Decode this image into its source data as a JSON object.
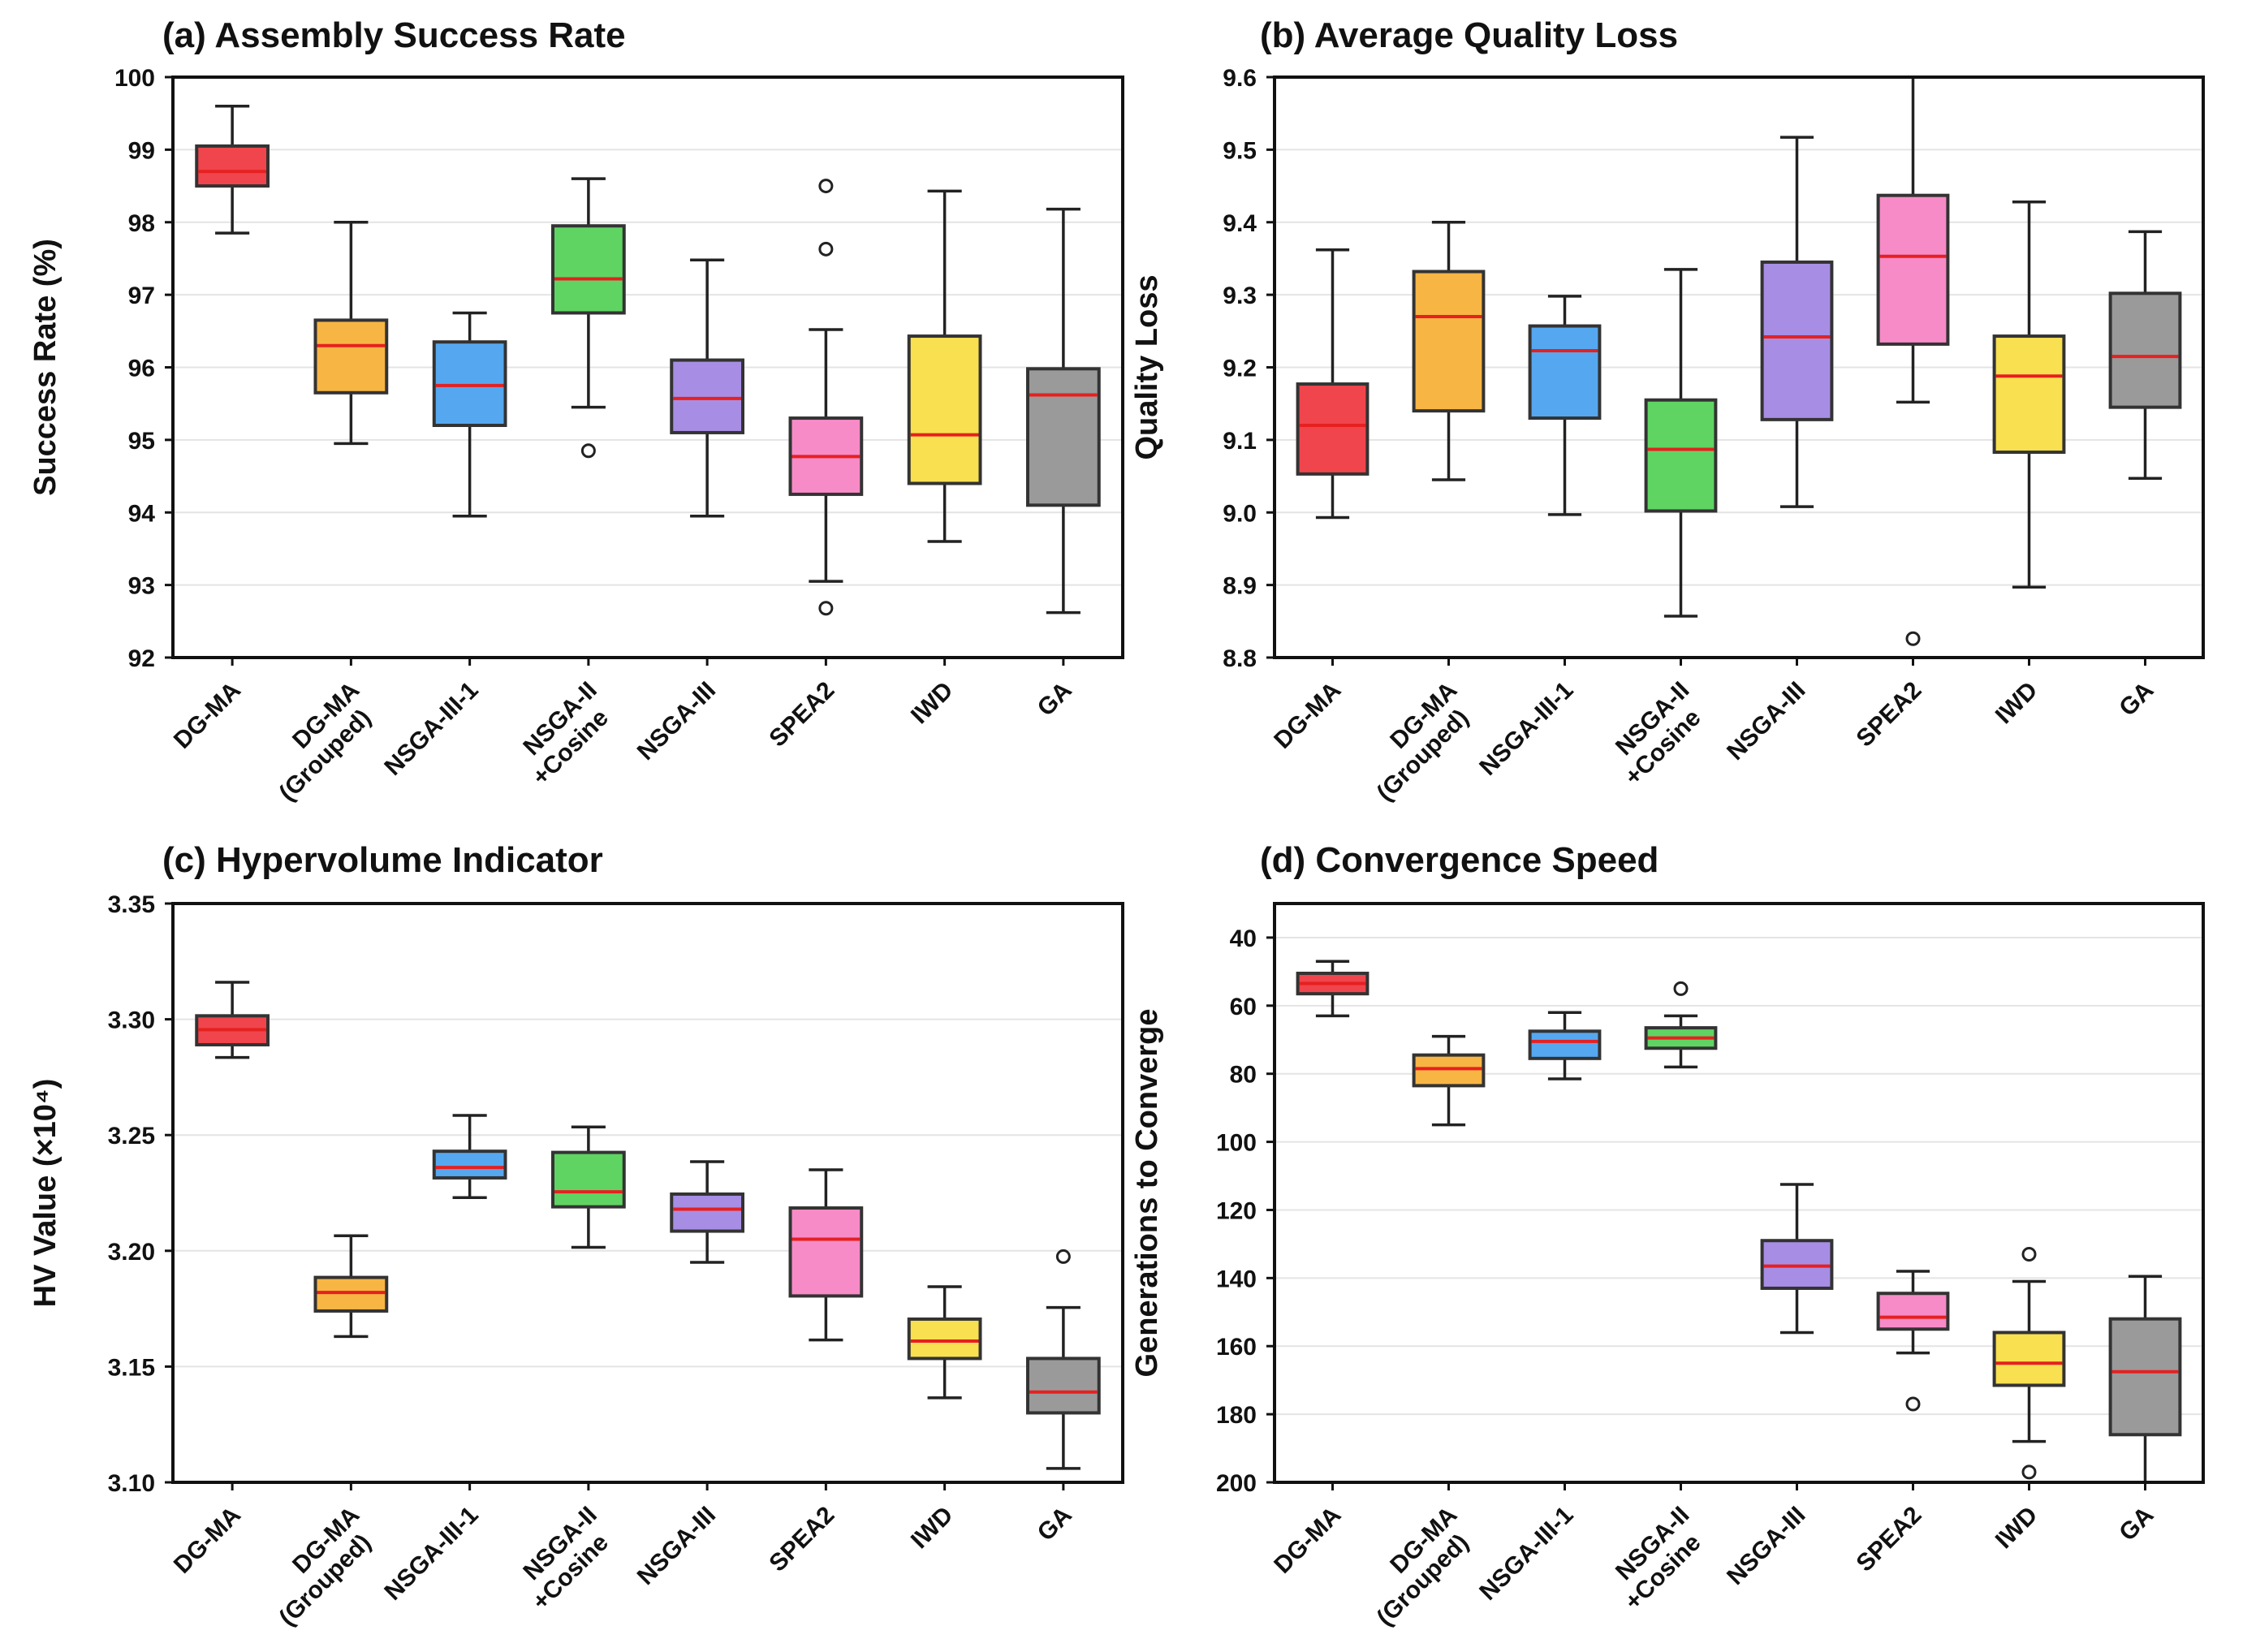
{
  "figure": {
    "categories": [
      "DG-MA",
      "DG-MA\n(Grouped)",
      "NSGA-III-1",
      "NSGA-II\n+Cosine",
      "NSGA-III",
      "SPEA2",
      "IWD",
      "GA"
    ],
    "colors": [
      "#f0454c",
      "#f7b544",
      "#55a8f0",
      "#5fd463",
      "#a78ee4",
      "#f78bc7",
      "#f8e050",
      "#9a9a9a"
    ],
    "median_colors": [
      "#e62020",
      "#e62020",
      "#e62020",
      "#e62020",
      "#e62020",
      "#e62020",
      "#e62020",
      "#e62020"
    ],
    "edge_colors": [
      "#333333",
      "#333333",
      "#333333",
      "#333333",
      "#333333",
      "#333333",
      "#333333",
      "#333333"
    ]
  },
  "chart_data": [
    {
      "type": "box",
      "title": "(a) Assembly Success Rate",
      "ylabel": "Success Rate (%)",
      "ylim": [
        92,
        100
      ],
      "yticks": [
        "92",
        "93",
        "94",
        "95",
        "96",
        "97",
        "98",
        "99",
        "100"
      ],
      "inverted": false,
      "boxes": [
        {
          "whislo": 97.85,
          "q1": 98.5,
          "med": 98.7,
          "q3": 99.05,
          "whishi": 99.6,
          "fliers": []
        },
        {
          "whislo": 94.95,
          "q1": 95.65,
          "med": 96.3,
          "q3": 96.65,
          "whishi": 98.0,
          "fliers": []
        },
        {
          "whislo": 93.95,
          "q1": 95.2,
          "med": 95.75,
          "q3": 96.35,
          "whishi": 96.75,
          "fliers": []
        },
        {
          "whislo": 95.45,
          "q1": 96.75,
          "med": 97.22,
          "q3": 97.95,
          "whishi": 98.6,
          "fliers": [
            94.85
          ]
        },
        {
          "whislo": 93.95,
          "q1": 95.1,
          "med": 95.57,
          "q3": 96.1,
          "whishi": 97.48,
          "fliers": []
        },
        {
          "whislo": 93.05,
          "q1": 94.25,
          "med": 94.77,
          "q3": 95.3,
          "whishi": 96.52,
          "fliers": [
            98.5,
            97.63,
            92.68
          ]
        },
        {
          "whislo": 93.6,
          "q1": 94.4,
          "med": 95.07,
          "q3": 96.43,
          "whishi": 98.43,
          "fliers": []
        },
        {
          "whislo": 92.62,
          "q1": 94.1,
          "med": 95.62,
          "q3": 95.98,
          "whishi": 98.18,
          "fliers": []
        }
      ]
    },
    {
      "type": "box",
      "title": "(b) Average Quality Loss",
      "ylabel": "Quality Loss",
      "ylim": [
        8.8,
        9.6
      ],
      "yticks": [
        "8.8",
        "8.9",
        "9.0",
        "9.1",
        "9.2",
        "9.3",
        "9.4",
        "9.5",
        "9.6"
      ],
      "inverted": false,
      "boxes": [
        {
          "whislo": 8.993,
          "q1": 9.053,
          "med": 9.12,
          "q3": 9.177,
          "whishi": 9.362,
          "fliers": []
        },
        {
          "whislo": 9.045,
          "q1": 9.14,
          "med": 9.27,
          "q3": 9.332,
          "whishi": 9.4,
          "fliers": []
        },
        {
          "whislo": 8.997,
          "q1": 9.13,
          "med": 9.223,
          "q3": 9.257,
          "whishi": 9.298,
          "fliers": []
        },
        {
          "whislo": 8.857,
          "q1": 9.002,
          "med": 9.087,
          "q3": 9.155,
          "whishi": 9.335,
          "fliers": []
        },
        {
          "whislo": 9.008,
          "q1": 9.128,
          "med": 9.242,
          "q3": 9.345,
          "whishi": 9.517,
          "fliers": []
        },
        {
          "whislo": 9.152,
          "q1": 9.232,
          "med": 9.353,
          "q3": 9.437,
          "whishi": 9.6,
          "fliers": [
            8.826
          ]
        },
        {
          "whislo": 8.897,
          "q1": 9.083,
          "med": 9.188,
          "q3": 9.243,
          "whishi": 9.428,
          "fliers": []
        },
        {
          "whislo": 9.047,
          "q1": 9.145,
          "med": 9.215,
          "q3": 9.302,
          "whishi": 9.387,
          "fliers": []
        }
      ]
    },
    {
      "type": "box",
      "title": "(c) Hypervolume Indicator",
      "ylabel": "HV Value (×10⁴)",
      "ylim": [
        3.1,
        3.35
      ],
      "yticks": [
        "3.10",
        "3.15",
        "3.20",
        "3.25",
        "3.30",
        "3.35"
      ],
      "inverted": false,
      "boxes": [
        {
          "whislo": 3.2835,
          "q1": 3.289,
          "med": 3.2955,
          "q3": 3.3015,
          "whishi": 3.316,
          "fliers": []
        },
        {
          "whislo": 3.163,
          "q1": 3.174,
          "med": 3.182,
          "q3": 3.1885,
          "whishi": 3.2065,
          "fliers": []
        },
        {
          "whislo": 3.223,
          "q1": 3.2315,
          "med": 3.236,
          "q3": 3.243,
          "whishi": 3.2585,
          "fliers": []
        },
        {
          "whislo": 3.2015,
          "q1": 3.219,
          "med": 3.2255,
          "q3": 3.2425,
          "whishi": 3.2535,
          "fliers": []
        },
        {
          "whislo": 3.195,
          "q1": 3.2085,
          "med": 3.218,
          "q3": 3.2245,
          "whishi": 3.2385,
          "fliers": []
        },
        {
          "whislo": 3.1615,
          "q1": 3.1805,
          "med": 3.205,
          "q3": 3.2185,
          "whishi": 3.235,
          "fliers": []
        },
        {
          "whislo": 3.1365,
          "q1": 3.1535,
          "med": 3.161,
          "q3": 3.1705,
          "whishi": 3.1845,
          "fliers": []
        },
        {
          "whislo": 3.106,
          "q1": 3.13,
          "med": 3.139,
          "q3": 3.1535,
          "whishi": 3.1755,
          "fliers": [
            3.1975
          ]
        }
      ]
    },
    {
      "type": "box",
      "title": "(d) Convergence Speed",
      "ylabel": "Generations to Converge",
      "ylim": [
        30,
        200
      ],
      "yticks": [
        "40",
        "60",
        "80",
        "100",
        "120",
        "140",
        "160",
        "180",
        "200"
      ],
      "ytick_values": [
        40,
        60,
        80,
        100,
        120,
        140,
        160,
        180,
        200
      ],
      "inverted": true,
      "boxes": [
        {
          "whislo": 47,
          "q1": 50.5,
          "med": 53.5,
          "q3": 56.5,
          "whishi": 63,
          "fliers": []
        },
        {
          "whislo": 69,
          "q1": 74.5,
          "med": 78.5,
          "q3": 83.5,
          "whishi": 95,
          "fliers": []
        },
        {
          "whislo": 62,
          "q1": 67.5,
          "med": 70.5,
          "q3": 75.5,
          "whishi": 81.5,
          "fliers": []
        },
        {
          "whislo": 63,
          "q1": 66.5,
          "med": 69.5,
          "q3": 72.5,
          "whishi": 78,
          "fliers": [
            55
          ]
        },
        {
          "whislo": 112.5,
          "q1": 129,
          "med": 136.5,
          "q3": 143,
          "whishi": 156,
          "fliers": []
        },
        {
          "whislo": 138,
          "q1": 144.5,
          "med": 151.5,
          "q3": 155,
          "whishi": 162,
          "fliers": [
            177
          ]
        },
        {
          "whislo": 141,
          "q1": 156,
          "med": 165,
          "q3": 171.5,
          "whishi": 188,
          "fliers": [
            133,
            197
          ]
        },
        {
          "whislo": 139.5,
          "q1": 152,
          "med": 167.5,
          "q3": 186,
          "whishi": 200,
          "fliers": []
        }
      ]
    }
  ]
}
